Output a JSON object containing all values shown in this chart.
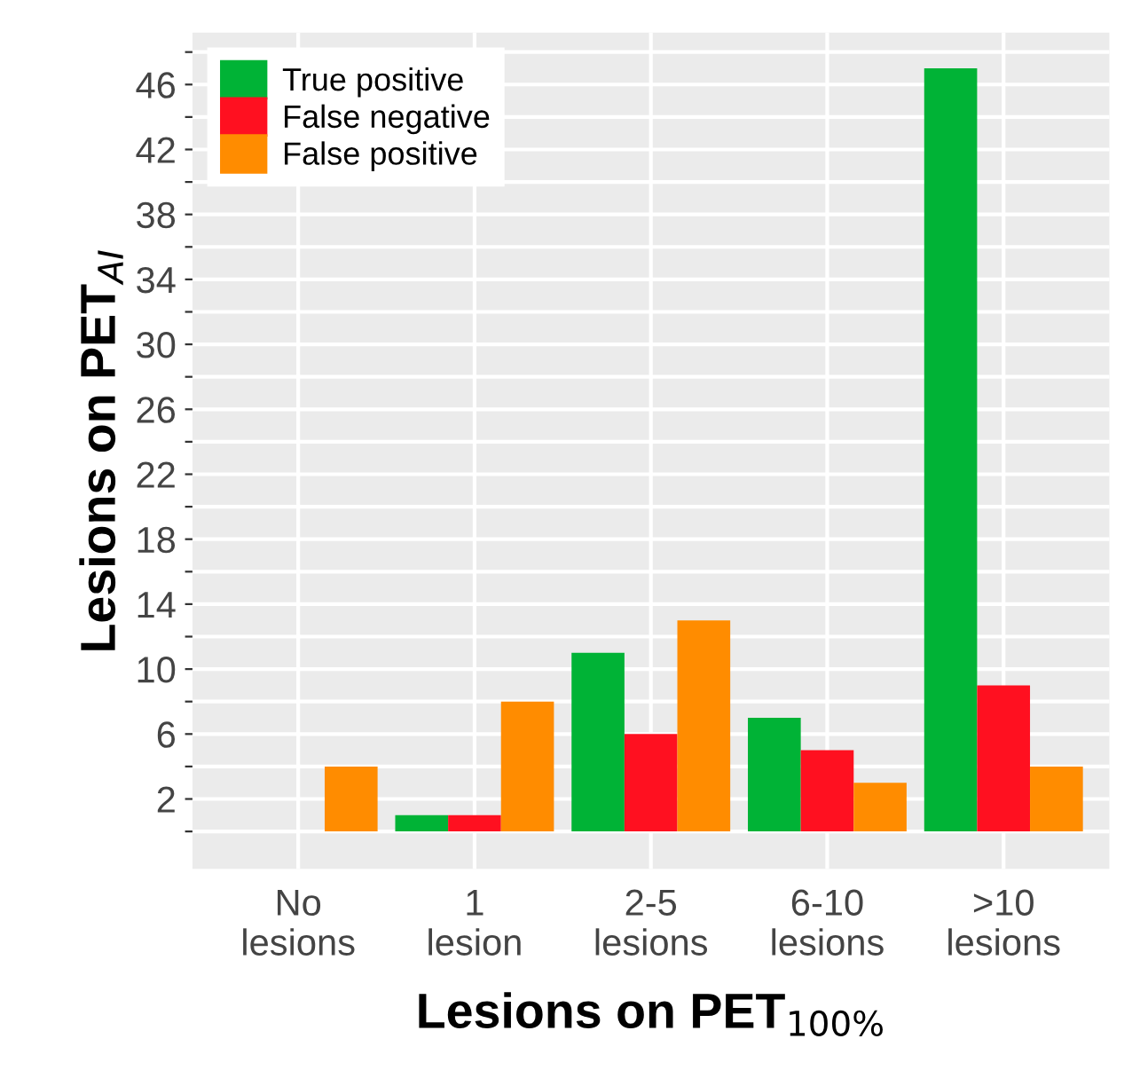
{
  "chart_data": {
    "type": "bar",
    "xlabel": "Lesions on PET$_{100%}$",
    "ylabel": "Lesions on PET$_{AI}$",
    "categories": [
      "No\nlesions",
      "1\nlesion",
      "2-5\nlesions",
      "6-10\nlesions",
      ">10\nlesions"
    ],
    "series": [
      {
        "name": "True positive",
        "color": "#00b336",
        "values": [
          0,
          1,
          11,
          7,
          47
        ]
      },
      {
        "name": "False negative",
        "color": "#ff1020",
        "values": [
          0,
          1,
          6,
          5,
          9
        ]
      },
      {
        "name": "False positive",
        "color": "#ff8c00",
        "values": [
          4,
          8,
          13,
          3,
          4
        ]
      }
    ],
    "ylim": [
      -2.3,
      49.2
    ],
    "yticks": [
      {
        "value": 0,
        "label": null
      },
      2,
      {
        "value": 4,
        "label": null
      },
      6,
      {
        "value": 8,
        "label": null
      },
      10,
      {
        "value": 12,
        "label": null
      },
      14,
      {
        "value": 16,
        "label": null
      },
      18,
      {
        "value": 20,
        "label": null
      },
      22,
      {
        "value": 24,
        "label": null
      },
      26,
      {
        "value": 28,
        "label": null
      },
      30,
      {
        "value": 32,
        "label": null
      },
      34,
      {
        "value": 36,
        "label": null
      },
      38,
      {
        "value": 40,
        "label": null
      },
      42,
      {
        "value": 44,
        "label": null
      },
      46,
      {
        "value": 48,
        "label": null
      }
    ],
    "grid": true,
    "legend": "top left"
  }
}
